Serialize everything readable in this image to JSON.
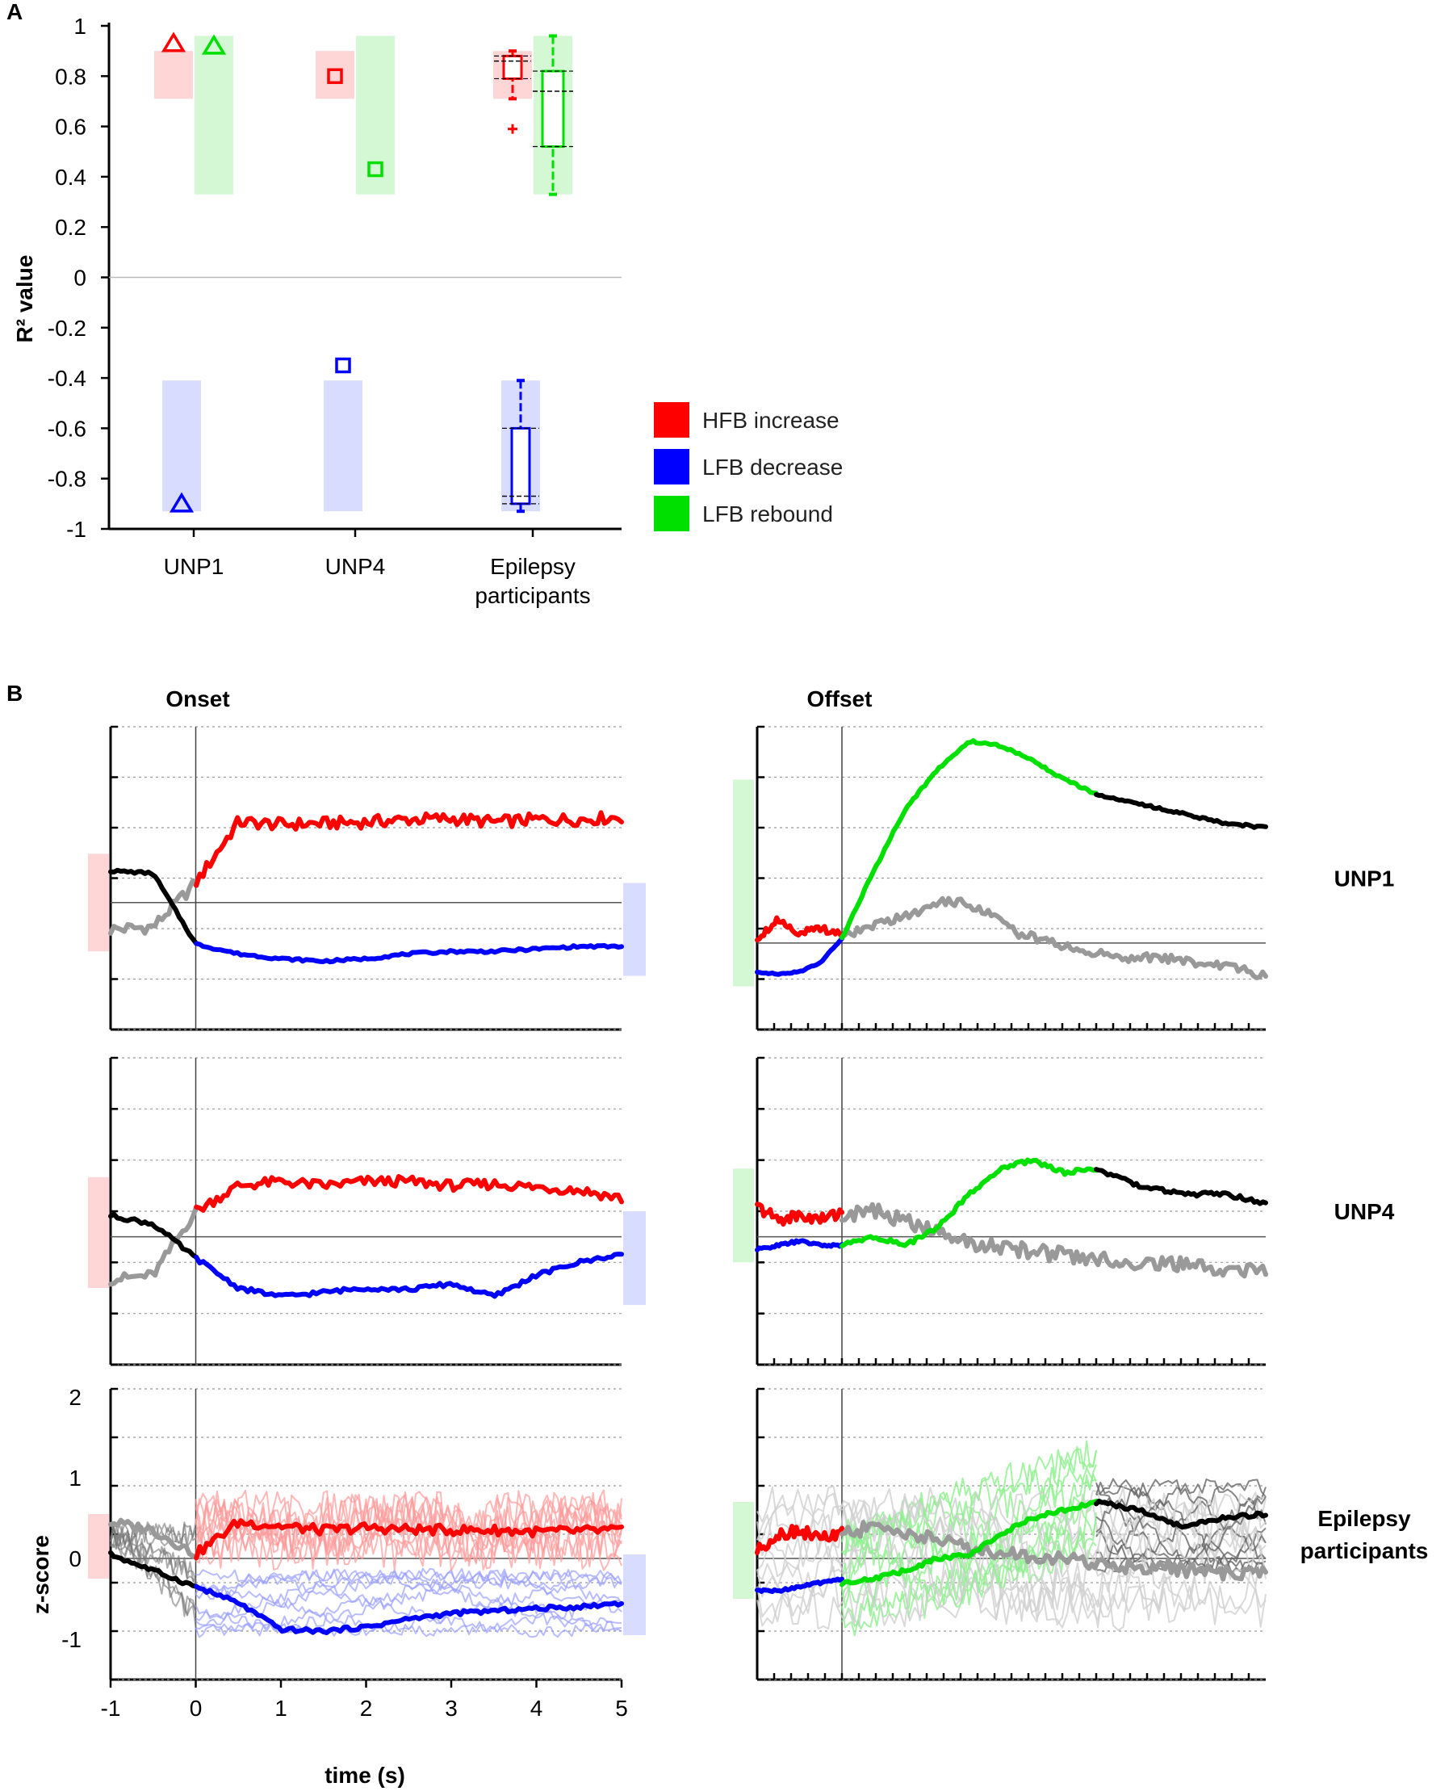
{
  "panels": {
    "a_label": "A",
    "b_label": "B"
  },
  "colors": {
    "hfb": "#ff0000",
    "lfb_dec": "#0000ff",
    "lfb_reb": "#00e000",
    "gray": "#999999",
    "black": "#000000",
    "hfb_bg": "#ffd6d6",
    "lfb_dec_bg": "#d8dcff",
    "lfb_reb_bg": "#d4f7d4"
  },
  "chart_data": [
    {
      "id": "panel-a",
      "type": "scatter",
      "title": "",
      "ylabel": "R² value",
      "ylim": [
        -1,
        1
      ],
      "yticks": [
        "1",
        "0.8",
        "0.6",
        "0.4",
        "0.2",
        "0",
        "-0.2",
        "-0.4",
        "-0.6",
        "-0.8",
        "-1"
      ],
      "categories": [
        "UNP1",
        "UNP4",
        "Epilepsy participants"
      ],
      "category_lines": [
        [
          "UNP1"
        ],
        [
          "UNP4"
        ],
        [
          "Epilepsy",
          "participants"
        ]
      ],
      "legend": [
        {
          "name": "HFB increase",
          "color": "#ff0000"
        },
        {
          "name": "LFB decrease",
          "color": "#0000ff"
        },
        {
          "name": "LFB rebound",
          "color": "#00e000"
        }
      ],
      "range_bands": [
        {
          "series": "HFB increase",
          "range": [
            0.71,
            0.9
          ]
        },
        {
          "series": "LFB decrease",
          "range": [
            -0.93,
            -0.41
          ]
        },
        {
          "series": "LFB rebound",
          "range": [
            0.33,
            0.96
          ]
        }
      ],
      "points": [
        {
          "category": "UNP1",
          "series": "HFB increase",
          "value": 0.93,
          "marker": "triangle"
        },
        {
          "category": "UNP1",
          "series": "LFB rebound",
          "value": 0.92,
          "marker": "triangle"
        },
        {
          "category": "UNP1",
          "series": "LFB decrease",
          "value": -0.9,
          "marker": "triangle"
        },
        {
          "category": "UNP4",
          "series": "HFB increase",
          "value": 0.8,
          "marker": "square"
        },
        {
          "category": "UNP4",
          "series": "LFB rebound",
          "value": 0.43,
          "marker": "square"
        },
        {
          "category": "UNP4",
          "series": "LFB decrease",
          "value": -0.35,
          "marker": "square"
        }
      ],
      "boxplots": [
        {
          "category": "Epilepsy participants",
          "series": "HFB increase",
          "min": 0.71,
          "q1": 0.79,
          "median": 0.86,
          "q3": 0.88,
          "max": 0.9,
          "outliers": [
            0.59
          ]
        },
        {
          "category": "Epilepsy participants",
          "series": "LFB rebound",
          "min": 0.33,
          "q1": 0.52,
          "median": 0.74,
          "q3": 0.82,
          "max": 0.96,
          "outliers": []
        },
        {
          "category": "Epilepsy participants",
          "series": "LFB decrease",
          "min": -0.93,
          "q1": -0.9,
          "median": -0.87,
          "q3": -0.6,
          "max": -0.41,
          "outliers": []
        }
      ]
    },
    {
      "id": "panel-b",
      "type": "line",
      "column_titles": [
        "Onset",
        "Offset"
      ],
      "row_labels": [
        [
          "UNP1"
        ],
        [
          "UNP4"
        ],
        [
          "Epilepsy",
          "participants"
        ]
      ],
      "xlabel": "time (s)",
      "ylabel": "z-score",
      "xlim": [
        -1,
        5
      ],
      "xticks": [
        "-1",
        "0",
        "1",
        "2",
        "3",
        "4",
        "5"
      ],
      "ylim": [
        -1.5,
        2
      ],
      "yticks": [
        "2",
        "1",
        "0",
        "-1"
      ],
      "onset_series": [
        {
          "name": "HFB increase",
          "color": "#ff0000",
          "pre_color": "#999999"
        },
        {
          "name": "LFB decrease",
          "color": "#0000ff",
          "pre_color": "#000000"
        }
      ],
      "offset_series": [
        {
          "name": "HFB increase (pre-offset)",
          "color": "#ff0000"
        },
        {
          "name": "LFB decrease (pre-offset)",
          "color": "#0000ff"
        },
        {
          "name": "LFB rebound",
          "color": "#00e000",
          "late_color": "#000000"
        },
        {
          "name": "HFB after offset",
          "color": "#999999"
        }
      ],
      "onset_times": [
        -1.0,
        -0.5,
        0.0,
        0.5,
        1.0,
        1.5,
        2.0,
        2.5,
        3.0,
        3.5,
        4.0,
        4.5,
        5.0
      ],
      "rows": [
        {
          "row": "UNP1",
          "onset_hfb": [
            -0.55,
            -0.5,
            0.4,
            1.65,
            1.6,
            1.62,
            1.65,
            1.7,
            1.72,
            1.65,
            1.7,
            1.7,
            1.75
          ],
          "onset_lfb": [
            0.65,
            0.6,
            -0.85,
            -1.05,
            -1.15,
            -1.2,
            -1.15,
            -1.05,
            -1.0,
            -1.0,
            -0.95,
            -0.9,
            -0.9
          ],
          "offset_pre_hfb": [
            0.1,
            0.5,
            0.2,
            0.3,
            0.2
          ],
          "offset_pre_lfb": [
            -0.6,
            -0.65,
            -0.6,
            -0.4,
            0.1
          ],
          "offset_rebound": [
            0.1,
            1.5,
            2.8,
            3.6,
            4.2,
            4.1,
            3.8,
            3.4,
            3.1
          ],
          "offset_rebound_late": [
            3.1,
            2.9,
            2.7,
            2.5,
            2.4
          ],
          "offset_hfb_after": [
            0.1,
            0.4,
            0.6,
            0.9,
            0.7,
            0.2,
            0.0,
            -0.2,
            -0.3,
            -0.3,
            -0.4,
            -0.5,
            -0.7
          ],
          "band_left": [
            -1.0,
            1.0
          ],
          "band_right": [
            -1.5,
            0.4
          ],
          "offset_band": [
            -0.9,
            3.4
          ],
          "ylim": [
            -2.6,
            3.6
          ],
          "offset_ylim": [
            -1.8,
            4.5
          ]
        },
        {
          "row": "UNP4",
          "onset_hfb": [
            -0.5,
            -0.45,
            0.3,
            0.6,
            0.65,
            0.6,
            0.65,
            0.65,
            0.6,
            0.62,
            0.58,
            0.55,
            0.45
          ],
          "onset_lfb": [
            0.25,
            0.15,
            -0.25,
            -0.6,
            -0.7,
            -0.65,
            -0.6,
            -0.62,
            -0.55,
            -0.7,
            -0.45,
            -0.3,
            -0.2
          ],
          "offset_pre_hfb": [
            0.35,
            0.2,
            0.25,
            0.2,
            0.3
          ],
          "offset_pre_lfb": [
            -0.15,
            -0.1,
            -0.05,
            -0.1,
            -0.1
          ],
          "offset_rebound": [
            -0.1,
            0.0,
            -0.1,
            0.1,
            0.5,
            0.8,
            0.9,
            0.75,
            0.8
          ],
          "offset_rebound_late": [
            0.8,
            0.6,
            0.5,
            0.5,
            0.4
          ],
          "offset_hfb_after": [
            0.25,
            0.3,
            0.15,
            0.0,
            -0.1,
            -0.15,
            -0.2,
            -0.25,
            -0.3,
            -0.3,
            -0.35,
            -0.4,
            -0.4
          ],
          "band_left": [
            -0.6,
            0.7
          ],
          "band_right": [
            -0.8,
            0.3
          ],
          "offset_band": [
            -0.3,
            0.8
          ],
          "ylim": [
            -1.5,
            2.1
          ],
          "offset_ylim": [
            -1.5,
            2.1
          ]
        },
        {
          "row": "Epilepsy participants",
          "onset_hfb": [
            0.45,
            0.35,
            0.05,
            0.45,
            0.4,
            0.35,
            0.38,
            0.36,
            0.35,
            0.35,
            0.33,
            0.34,
            0.35
          ],
          "onset_lfb": [
            0.05,
            -0.15,
            -0.35,
            -0.55,
            -0.88,
            -0.9,
            -0.85,
            -0.75,
            -0.68,
            -0.65,
            -0.62,
            -0.6,
            -0.55
          ],
          "offset_pre_hfb": [
            0.1,
            0.3,
            0.35,
            0.25,
            0.3
          ],
          "offset_pre_lfb": [
            -0.4,
            -0.4,
            -0.35,
            -0.3,
            -0.25
          ],
          "offset_rebound": [
            -0.3,
            -0.25,
            -0.15,
            0.0,
            0.05,
            0.3,
            0.5,
            0.6,
            0.7
          ],
          "offset_rebound_late": [
            0.7,
            0.6,
            0.4,
            0.5,
            0.55
          ],
          "offset_hfb_after": [
            0.3,
            0.4,
            0.3,
            0.2,
            0.1,
            0.05,
            0.0,
            -0.05,
            -0.1,
            -0.1,
            -0.15,
            -0.2,
            -0.15
          ],
          "band_left": [
            -0.25,
            0.55
          ],
          "band_right": [
            -0.95,
            0.05
          ],
          "offset_band": [
            -0.5,
            0.7
          ],
          "ylim": [
            -1.5,
            2.1
          ],
          "offset_ylim": [
            -1.5,
            2.1
          ]
        }
      ]
    }
  ]
}
